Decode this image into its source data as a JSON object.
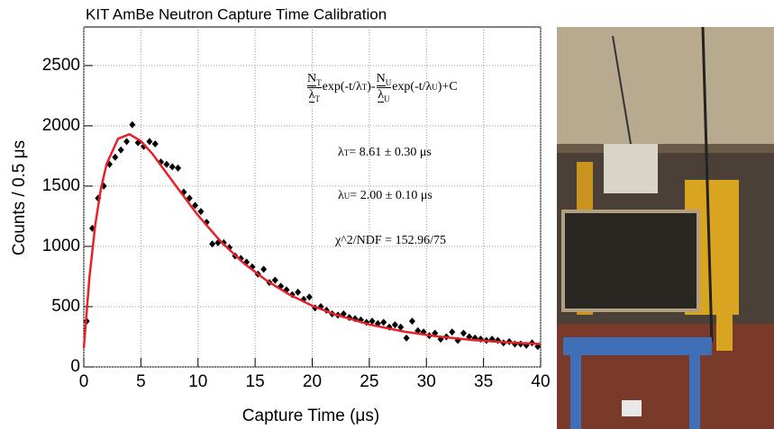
{
  "chart_data": {
    "type": "scatter",
    "title": "KIT AmBe Neutron Capture Time Calibration",
    "x_label": "Capture Time (μs)",
    "y_label": "Counts / 0.5 μs",
    "xlim": [
      0,
      40
    ],
    "ylim": [
      0,
      2820
    ],
    "xticks": [
      0,
      5,
      10,
      15,
      20,
      25,
      30,
      35,
      40
    ],
    "yticks": [
      0,
      500,
      1000,
      1500,
      2000,
      2500
    ],
    "grid": true,
    "series": [
      {
        "type": "scatter",
        "color": "#000000",
        "x": [
          0.25,
          0.75,
          1.25,
          1.75,
          2.25,
          2.75,
          3.25,
          3.75,
          4.25,
          4.75,
          5.25,
          5.75,
          6.25,
          6.75,
          7.25,
          7.75,
          8.25,
          8.75,
          9.25,
          9.75,
          10.25,
          10.75,
          11.25,
          11.75,
          12.25,
          12.75,
          13.25,
          13.75,
          14.25,
          14.75,
          15.25,
          15.75,
          16.25,
          16.75,
          17.25,
          17.75,
          18.25,
          18.75,
          19.25,
          19.75,
          20.25,
          20.75,
          21.25,
          21.75,
          22.25,
          22.75,
          23.25,
          23.75,
          24.25,
          24.75,
          25.25,
          25.75,
          26.25,
          26.75,
          27.25,
          27.75,
          28.25,
          28.75,
          29.25,
          29.75,
          30.25,
          30.75,
          31.25,
          31.75,
          32.25,
          32.75,
          33.25,
          33.75,
          34.25,
          34.75,
          35.25,
          35.75,
          36.25,
          36.75,
          37.25,
          37.75,
          38.25,
          38.75,
          39.25,
          39.75
        ],
        "values": [
          380,
          1150,
          1400,
          1500,
          1680,
          1740,
          1800,
          1870,
          2010,
          1860,
          1830,
          1870,
          1850,
          1700,
          1680,
          1660,
          1650,
          1450,
          1400,
          1340,
          1290,
          1200,
          1020,
          1030,
          1030,
          990,
          920,
          900,
          870,
          830,
          770,
          810,
          700,
          720,
          670,
          640,
          600,
          620,
          560,
          580,
          490,
          500,
          470,
          440,
          430,
          440,
          410,
          400,
          390,
          370,
          380,
          360,
          370,
          330,
          350,
          330,
          240,
          380,
          300,
          290,
          260,
          280,
          230,
          250,
          290,
          220,
          280,
          250,
          240,
          230,
          220,
          230,
          220,
          200,
          210,
          190,
          190,
          180,
          200,
          170
        ]
      },
      {
        "type": "line",
        "color": "#e8202a",
        "x": [
          0,
          0.5,
          1,
          1.5,
          2,
          3,
          4,
          5,
          6,
          8,
          10,
          12,
          14,
          16,
          18,
          20,
          22,
          25,
          28,
          31,
          34,
          37,
          40
        ],
        "values": [
          155,
          748,
          1177,
          1479,
          1684,
          1893,
          1930,
          1874,
          1769,
          1511,
          1257,
          1040,
          860,
          717,
          600,
          508,
          435,
          352,
          294,
          253,
          224,
          204,
          190
        ]
      }
    ],
    "annotations": [
      {
        "parts": [
          {
            "num": "N",
            "num_sub": "T",
            "den": "λ",
            "den_sub": "T"
          },
          {
            "text": "exp(-t/λ"
          },
          {
            "sub": "T"
          },
          {
            "text": ")-"
          },
          {
            "num": "N",
            "num_sub": "U",
            "den": "λ",
            "den_sub": "U"
          },
          {
            "text": "exp(-t/λ"
          },
          {
            "sub": "U"
          },
          {
            "text": ")+C"
          }
        ]
      },
      {
        "parts": [
          {
            "text": "λ"
          },
          {
            "sub": "T"
          },
          {
            "text": " = 8.61 ± 0.30 μs"
          }
        ]
      },
      {
        "parts": [
          {
            "text": "λ"
          },
          {
            "sub": "U"
          },
          {
            "text": " = 2.00 ± 0.10 μs"
          }
        ]
      },
      {
        "parts": [
          {
            "text": "χ^2/NDF = 152.96/75"
          }
        ]
      }
    ]
  }
}
